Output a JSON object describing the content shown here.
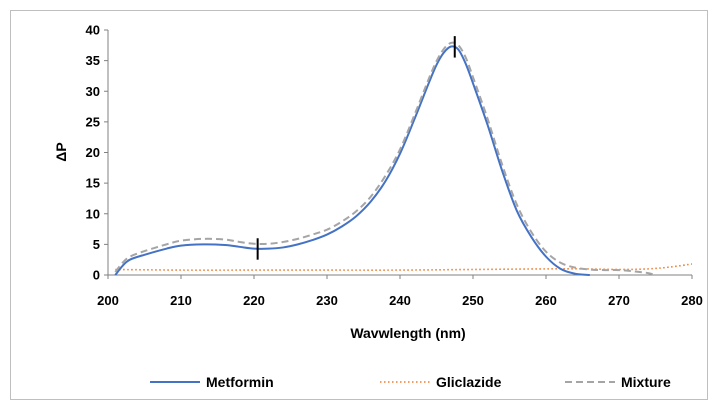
{
  "chart_data": {
    "type": "line",
    "title": "",
    "xlabel": "Wavwlength (nm)",
    "ylabel": "ΔP",
    "xlim": [
      200,
      280
    ],
    "ylim": [
      0,
      40
    ],
    "xticks": [
      200,
      210,
      220,
      230,
      240,
      250,
      260,
      270,
      280
    ],
    "yticks": [
      0,
      5,
      10,
      15,
      20,
      25,
      30,
      35,
      40
    ],
    "xtick_labels": [
      "200",
      "210",
      "220",
      "230",
      "240",
      "250",
      "260",
      "270",
      "280"
    ],
    "ytick_labels": [
      "0",
      "5",
      "10",
      "15",
      "20",
      "25",
      "30",
      "35",
      "40"
    ],
    "grid": false,
    "legend_position": "bottom",
    "series": [
      {
        "name": "Metformin",
        "color": "#4472C4",
        "style": "solid",
        "x": [
          201,
          202,
          203,
          205,
          208,
          210,
          213,
          216,
          218,
          220,
          222,
          224,
          226,
          228,
          230,
          232,
          234,
          236,
          238,
          240,
          242,
          244,
          245,
          246,
          247,
          248,
          249,
          250,
          252,
          254,
          256,
          258,
          260,
          262,
          264,
          266
        ],
        "y": [
          0,
          1.5,
          2.5,
          3.3,
          4.3,
          4.8,
          5.0,
          4.9,
          4.6,
          4.3,
          4.3,
          4.5,
          5.0,
          5.7,
          6.6,
          7.9,
          9.6,
          12.0,
          15.3,
          19.8,
          25.5,
          31.5,
          34.3,
          36.3,
          37.3,
          36.8,
          34.5,
          31.3,
          24.5,
          17.0,
          10.5,
          6.2,
          3.0,
          1.0,
          0.2,
          0
        ]
      },
      {
        "name": "Gliclazide",
        "color": "#ED7D31",
        "style": "dotted",
        "x": [
          201,
          210,
          220,
          230,
          240,
          250,
          260,
          265,
          270,
          274,
          277,
          280
        ],
        "y": [
          0.9,
          0.8,
          0.8,
          0.8,
          0.8,
          0.9,
          1.0,
          1.0,
          0.9,
          1.0,
          1.3,
          1.8
        ]
      },
      {
        "name": "Mixture",
        "color": "#A5A5A5",
        "style": "dashed",
        "x": [
          201,
          202,
          203,
          205,
          208,
          210,
          213,
          216,
          218,
          220,
          222,
          224,
          226,
          228,
          230,
          232,
          234,
          236,
          238,
          240,
          242,
          244,
          245,
          246,
          247,
          248,
          249,
          250,
          252,
          254,
          256,
          258,
          260,
          262,
          264,
          266,
          268,
          270,
          272,
          274,
          275
        ],
        "y": [
          0.5,
          2.0,
          3.0,
          3.9,
          5.0,
          5.6,
          5.9,
          5.8,
          5.4,
          5.1,
          5.1,
          5.4,
          5.9,
          6.6,
          7.4,
          8.7,
          10.4,
          12.8,
          16.2,
          20.5,
          26.2,
          32.2,
          34.9,
          36.9,
          37.9,
          37.5,
          35.5,
          32.3,
          25.5,
          18.0,
          11.5,
          7.0,
          3.8,
          2.0,
          1.2,
          0.9,
          0.8,
          0.8,
          0.6,
          0.3,
          0
        ]
      }
    ],
    "annotations": [
      {
        "type": "vertical-marker",
        "x": 220.5,
        "y_from": 2.5,
        "y_to": 6.0
      },
      {
        "type": "vertical-marker",
        "x": 247.5,
        "y_from": 35.5,
        "y_to": 39.0
      }
    ]
  }
}
